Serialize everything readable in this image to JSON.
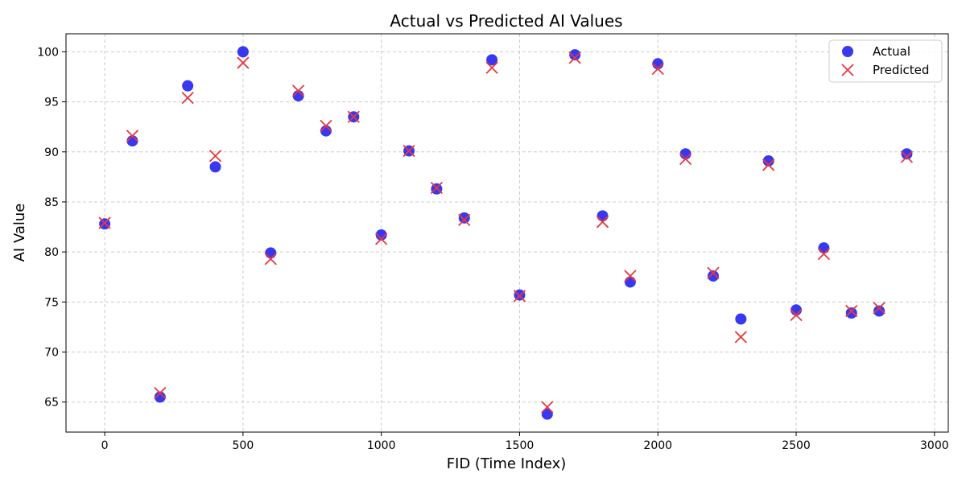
{
  "chart_data": {
    "type": "scatter",
    "title": "Actual vs Predicted AI Values",
    "xlabel": "FID (Time Index)",
    "ylabel": "AI Value",
    "xlim": [
      -140,
      3050
    ],
    "ylim": [
      62,
      101.8
    ],
    "xticks": [
      0,
      500,
      1000,
      1500,
      2000,
      2500,
      3000
    ],
    "yticks": [
      65,
      70,
      75,
      80,
      85,
      90,
      95,
      100
    ],
    "grid": true,
    "legend": "top-right",
    "series": [
      {
        "name": "Actual",
        "marker": "circle",
        "color": "#1515ee",
        "x": [
          0,
          100,
          200,
          300,
          400,
          500,
          600,
          700,
          800,
          900,
          1000,
          1100,
          1200,
          1300,
          1400,
          1500,
          1600,
          1700,
          1800,
          1900,
          2000,
          2100,
          2200,
          2300,
          2400,
          2500,
          2600,
          2700,
          2800,
          2900
        ],
        "values": [
          82.8,
          91.1,
          65.5,
          96.6,
          88.5,
          100.0,
          79.9,
          95.6,
          92.1,
          93.5,
          81.7,
          90.1,
          86.3,
          83.4,
          99.2,
          75.7,
          63.8,
          99.7,
          83.6,
          77.0,
          98.8,
          89.8,
          77.6,
          73.3,
          89.1,
          74.2,
          80.4,
          73.9,
          74.1,
          89.8
        ]
      },
      {
        "name": "Predicted",
        "marker": "x",
        "color": "#e8383d",
        "x": [
          0,
          100,
          200,
          300,
          400,
          500,
          600,
          700,
          800,
          900,
          1000,
          1100,
          1200,
          1300,
          1400,
          1500,
          1600,
          1700,
          1800,
          1900,
          2000,
          2100,
          2200,
          2300,
          2400,
          2500,
          2600,
          2700,
          2800,
          2900
        ],
        "values": [
          82.9,
          91.6,
          65.9,
          95.4,
          89.6,
          98.9,
          79.3,
          96.1,
          92.6,
          93.5,
          81.3,
          90.1,
          86.4,
          83.2,
          98.4,
          75.6,
          64.5,
          99.4,
          83.0,
          77.6,
          98.3,
          89.3,
          77.9,
          71.5,
          88.7,
          73.7,
          79.8,
          74.1,
          74.4,
          89.5
        ]
      }
    ]
  }
}
